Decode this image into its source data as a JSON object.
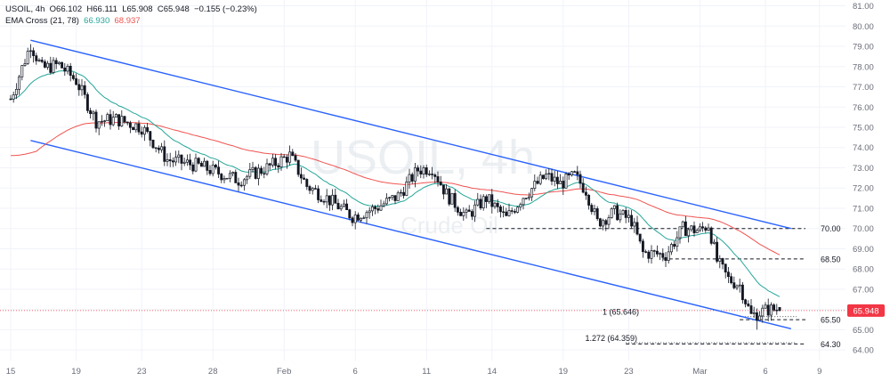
{
  "legend": {
    "symbol": "USOIL",
    "timeframe": "4h",
    "open_label": "O",
    "open": "66.102",
    "high_label": "H",
    "high": "66.111",
    "low_label": "L",
    "low": "65.908",
    "close_label": "C",
    "close": "65.948",
    "change": "−0.155 (−0.23%)",
    "ema_label": "EMA Cross (21, 78)",
    "ema_fast": "66.930",
    "ema_slow": "68.937"
  },
  "watermark": {
    "title": "USOIL, 4h",
    "subtitle": "Crude Oil"
  },
  "colors": {
    "up": "#131722",
    "down": "#131722",
    "ema_fast": "#26a69a",
    "ema_slow": "#ef5350",
    "channel": "#2962ff",
    "last_price_tag": "#f23645",
    "axis_text": "#6a6d78"
  },
  "chart_data": {
    "type": "candlestick",
    "ylim": [
      63.7,
      81.2
    ],
    "y_ticks": [
      "64.00",
      "65.00",
      "66.00",
      "67.00",
      "68.00",
      "69.00",
      "70.00",
      "71.00",
      "72.00",
      "73.00",
      "74.00",
      "75.00",
      "76.00",
      "77.00",
      "78.00",
      "79.00",
      "80.00",
      "81.00"
    ],
    "x_ticks": [
      "15",
      "19",
      "23",
      "28",
      "Feb",
      "6",
      "11",
      "14",
      "19",
      "23",
      "Mar",
      "6",
      "9"
    ],
    "x_tick_index": [
      0,
      23,
      46,
      71,
      96,
      121,
      146,
      169,
      194,
      217,
      242,
      265,
      284
    ],
    "last_price": "65.948",
    "last_price_value": 65.948,
    "levels": [
      {
        "value": 70.0,
        "label": "70.00",
        "from": 167
      },
      {
        "value": 68.5,
        "label": "68.50",
        "from": 229
      },
      {
        "value": 65.646,
        "label": "1 (65.646)",
        "from": 256
      },
      {
        "value": 65.5,
        "label": "65.50",
        "from": 256
      },
      {
        "value": 64.359,
        "label": "1.272 (64.359)",
        "from": 216
      },
      {
        "value": 64.3,
        "label": "64.30",
        "from": 216
      }
    ],
    "channel_upper": [
      [
        7,
        79.3
      ],
      [
        274,
        70.0
      ]
    ],
    "channel_lower": [
      [
        7,
        74.35
      ],
      [
        274,
        65.05
      ]
    ],
    "candles_start": {
      "index": 0,
      "value": 76.4
    },
    "price_path": [
      [
        0,
        76.4
      ],
      [
        7,
        79.1
      ],
      [
        11,
        77.9
      ],
      [
        17,
        78.1
      ],
      [
        23,
        77.3
      ],
      [
        30,
        75.3
      ],
      [
        37,
        75.4
      ],
      [
        46,
        75.0
      ],
      [
        55,
        73.4
      ],
      [
        66,
        73.1
      ],
      [
        80,
        72.4
      ],
      [
        90,
        73.0
      ],
      [
        98,
        73.6
      ],
      [
        104,
        72.1
      ],
      [
        110,
        71.6
      ],
      [
        120,
        70.6
      ],
      [
        128,
        71.0
      ],
      [
        136,
        71.6
      ],
      [
        143,
        72.9
      ],
      [
        148,
        73.0
      ],
      [
        153,
        71.7
      ],
      [
        160,
        70.6
      ],
      [
        167,
        71.5
      ],
      [
        174,
        70.5
      ],
      [
        180,
        71.6
      ],
      [
        188,
        72.6
      ],
      [
        193,
        72.2
      ],
      [
        198,
        72.6
      ],
      [
        202,
        71.9
      ],
      [
        206,
        70.3
      ],
      [
        212,
        70.8
      ],
      [
        218,
        70.4
      ],
      [
        222,
        68.8
      ],
      [
        230,
        68.7
      ],
      [
        236,
        70.0
      ],
      [
        242,
        69.9
      ],
      [
        245,
        70.2
      ],
      [
        248,
        68.4
      ],
      [
        252,
        67.5
      ],
      [
        256,
        67.2
      ],
      [
        260,
        65.7
      ],
      [
        266,
        66.0
      ],
      [
        270,
        66.0
      ]
    ],
    "ema_fast_end": 66.93,
    "ema_slow_end": 68.937
  }
}
